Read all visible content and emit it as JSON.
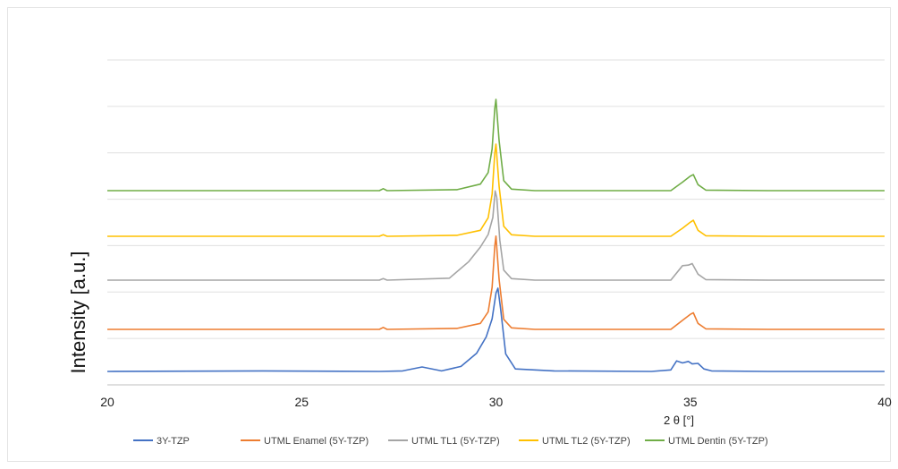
{
  "chart_data": {
    "type": "line",
    "title": "",
    "xlabel": "2 θ  [°]",
    "ylabel": "Intensity [a.u.]",
    "xlim": [
      20,
      40
    ],
    "x_ticks": [
      "20",
      "25",
      "30",
      "35",
      "40"
    ],
    "y_ticks": [],
    "grid": true,
    "legend_position": "bottom",
    "series": [
      {
        "name": "3Y-TZP",
        "color": "#4472C4",
        "x": [
          20,
          24,
          27,
          27.6,
          28.1,
          28.6,
          29.1,
          29.5,
          29.75,
          29.9,
          30.0,
          30.05,
          30.12,
          30.25,
          30.5,
          31.5,
          34,
          34.5,
          34.65,
          34.8,
          34.95,
          35.05,
          35.2,
          35.35,
          35.55,
          37,
          40
        ],
        "y": [
          0,
          0.1,
          0,
          0.1,
          0.9,
          0.1,
          1.0,
          3.6,
          6.9,
          10.5,
          15.6,
          16.6,
          12.5,
          3.5,
          0.5,
          0.1,
          0,
          0.3,
          2.1,
          1.7,
          2.0,
          1.5,
          1.6,
          0.5,
          0.1,
          0,
          0
        ]
      },
      {
        "name": "UTML Enamel (5Y-TZP)",
        "color": "#ED7D31",
        "x": [
          20,
          27,
          27.1,
          27.2,
          29,
          29.6,
          29.8,
          29.9,
          29.97,
          30.0,
          30.08,
          30.2,
          30.4,
          31,
          34.5,
          34.8,
          35.0,
          35.08,
          35.2,
          35.4,
          37,
          40
        ],
        "y": [
          0,
          0,
          0.4,
          0,
          0.2,
          1.2,
          3.5,
          8.4,
          16.6,
          18.6,
          10,
          2,
          0.3,
          0,
          0,
          1.8,
          3.0,
          3.3,
          1.2,
          0.1,
          0,
          0
        ]
      },
      {
        "name": "UTML TL1 (5Y-TZP)",
        "color": "#A5A5A5",
        "x": [
          20,
          27,
          27.1,
          27.2,
          28.8,
          29.3,
          29.6,
          29.8,
          29.92,
          29.98,
          30.02,
          30.1,
          30.2,
          30.4,
          31,
          34.5,
          34.8,
          34.95,
          35.05,
          35.2,
          35.4,
          37,
          40
        ],
        "y": [
          0,
          0,
          0.3,
          0,
          0.4,
          3.7,
          6.6,
          9.1,
          12.5,
          17.8,
          16.5,
          8,
          2,
          0.3,
          0,
          0,
          2.9,
          3.0,
          3.3,
          1.2,
          0.1,
          0,
          0
        ]
      },
      {
        "name": "UTML TL2 (5Y-TZP)",
        "color": "#FFC000",
        "x": [
          20,
          27,
          27.1,
          27.2,
          29,
          29.6,
          29.8,
          29.9,
          29.97,
          30.0,
          30.08,
          30.2,
          30.4,
          31,
          34.5,
          34.8,
          35.0,
          35.08,
          35.2,
          35.4,
          37,
          40
        ],
        "y": [
          0,
          0,
          0.3,
          0,
          0.2,
          1.2,
          3.7,
          8.4,
          16.6,
          18.4,
          10,
          2,
          0.3,
          0,
          0,
          1.6,
          2.8,
          3.2,
          1.2,
          0.1,
          0,
          0
        ]
      },
      {
        "name": "UTML Dentin (5Y-TZP)",
        "color": "#70AD47",
        "x": [
          20,
          27,
          27.1,
          27.2,
          29,
          29.6,
          29.8,
          29.9,
          29.97,
          30.0,
          30.08,
          30.2,
          30.4,
          31,
          34.5,
          34.8,
          35.0,
          35.08,
          35.2,
          35.4,
          37,
          40
        ],
        "y": [
          0,
          0,
          0.4,
          0,
          0.2,
          1.3,
          3.6,
          8.3,
          16.4,
          18.2,
          10,
          2,
          0.3,
          0,
          0,
          1.7,
          2.9,
          3.2,
          1.2,
          0.1,
          0,
          0
        ]
      }
    ]
  }
}
